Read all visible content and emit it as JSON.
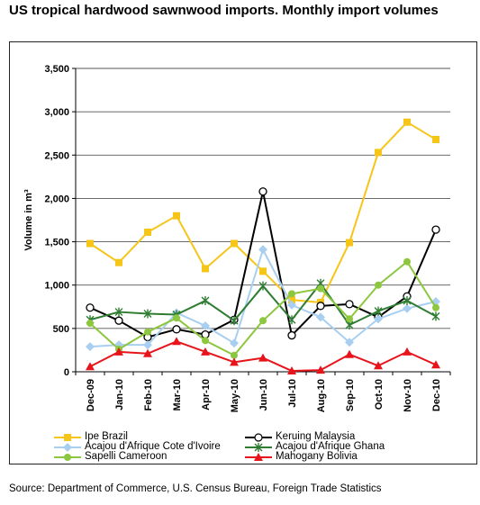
{
  "title": "US tropical hardwood sawnwood imports. Monthly import volumes",
  "source": "Source: Department of Commerce, U.S. Census Bureau, Foreign Trade Statistics",
  "chart_data": {
    "type": "line",
    "title": "US tropical hardwood sawnwood imports. Monthly import volumes",
    "ylabel": "Volume in m³",
    "xlabel": "",
    "ylim": [
      0,
      3500
    ],
    "yticks": [
      "0",
      "500",
      "1,000",
      "1,500",
      "2,000",
      "2,500",
      "3,000",
      "3,500"
    ],
    "ytick_values": [
      0,
      500,
      1000,
      1500,
      2000,
      2500,
      3000,
      3500
    ],
    "grid": "horizontal",
    "legend_position": "bottom",
    "categories": [
      "Dec-09",
      "Jan-10",
      "Feb-10",
      "Mar-10",
      "Apr-10",
      "May-10",
      "Jun-10",
      "Jul-10",
      "Aug-10",
      "Sep-10",
      "Oct-10",
      "Nov-10",
      "Dec-10"
    ],
    "series": [
      {
        "name": "Ipe Brazil",
        "color": "#F5C518",
        "marker": "square",
        "values": [
          1480,
          1260,
          1610,
          1800,
          1190,
          1480,
          1160,
          830,
          800,
          1490,
          2530,
          2880,
          2680
        ]
      },
      {
        "name": "Keruing Malaysia",
        "color": "#000000",
        "marker": "circle-open",
        "values": [
          740,
          590,
          400,
          490,
          430,
          600,
          2080,
          420,
          760,
          780,
          630,
          870,
          1640
        ]
      },
      {
        "name": "Acajou d'Afrique Cote d'Ivoire",
        "color": "#A8CFF0",
        "marker": "diamond",
        "values": [
          290,
          310,
          310,
          680,
          530,
          330,
          1410,
          770,
          630,
          340,
          610,
          730,
          810
        ]
      },
      {
        "name": "Acajou d'Afrique Ghana",
        "color": "#2E7D32",
        "marker": "star",
        "values": [
          600,
          690,
          670,
          660,
          820,
          590,
          990,
          600,
          1020,
          540,
          700,
          820,
          640
        ]
      },
      {
        "name": "Sapelli Cameroon",
        "color": "#8DC63F",
        "marker": "circle",
        "values": [
          560,
          260,
          460,
          620,
          360,
          190,
          590,
          900,
          960,
          610,
          1000,
          1270,
          740
        ]
      },
      {
        "name": "Mahogany Bolivia",
        "color": "#E8141B",
        "marker": "triangle",
        "values": [
          60,
          230,
          210,
          350,
          230,
          110,
          160,
          10,
          20,
          200,
          70,
          230,
          80
        ]
      }
    ]
  }
}
